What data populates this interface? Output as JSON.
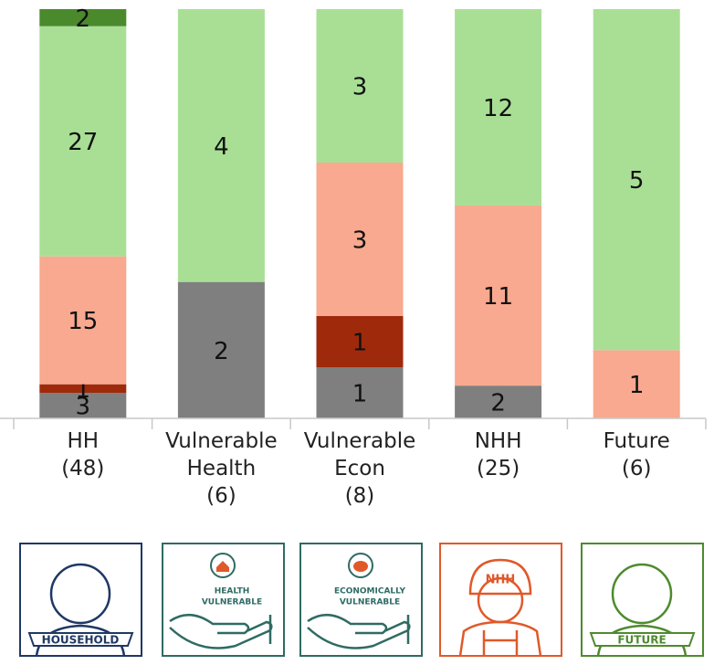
{
  "chart_data": {
    "type": "stacked-bar-100",
    "categories": [
      "HH\n(48)",
      "Vulnerable\nHealth\n(6)",
      "Vulnerable\nEcon\n(8)",
      "NHH\n(25)",
      "Future\n(6)"
    ],
    "series": [
      {
        "color": "#7f7f7f",
        "values": [
          3,
          2,
          1,
          2,
          null
        ]
      },
      {
        "color": "#9e2a0b",
        "values": [
          1,
          null,
          1,
          null,
          null
        ]
      },
      {
        "color": "#f8a98f",
        "values": [
          15,
          null,
          3,
          11,
          1
        ]
      },
      {
        "color": "#a9df95",
        "values": [
          27,
          4,
          3,
          12,
          5
        ]
      },
      {
        "color": "#4a8a2c",
        "values": [
          2,
          null,
          null,
          null,
          null
        ]
      }
    ]
  },
  "icons": [
    {
      "kind": "person",
      "color": "#1f3864",
      "lines": [
        "HOUSEHOLD"
      ]
    },
    {
      "kind": "hand-house",
      "color": "#2e6b63",
      "lines": [
        "HEALTH",
        "VULNERABLE"
      ]
    },
    {
      "kind": "hand-pig",
      "color": "#2e6b63",
      "lines": [
        "ECONOMICALLY",
        "VULNERABLE"
      ]
    },
    {
      "kind": "worker",
      "color": "#e0592a",
      "lines": [
        "NHH"
      ]
    },
    {
      "kind": "person",
      "color": "#4e8a2e",
      "lines": [
        "FUTURE"
      ]
    }
  ]
}
